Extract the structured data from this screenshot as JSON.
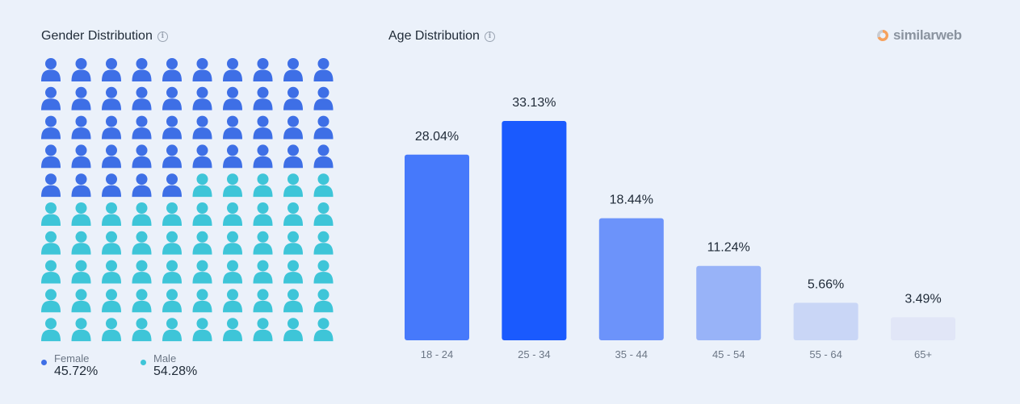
{
  "gender": {
    "title": "Gender Distribution",
    "female": {
      "label": "Female",
      "value": "45.72%",
      "pct": 45.72,
      "color": "#3e6fe6"
    },
    "male": {
      "label": "Male",
      "value": "54.28%",
      "pct": 54.28,
      "color": "#3ec5d8"
    },
    "icon_count": 100
  },
  "age": {
    "title": "Age Distribution"
  },
  "brand": {
    "name": "similarweb"
  },
  "chart_data": [
    {
      "type": "icon-array",
      "title": "Gender Distribution",
      "categories": [
        "Female",
        "Male"
      ],
      "values": [
        45.72,
        54.28
      ],
      "unit": "%"
    },
    {
      "type": "bar",
      "title": "Age Distribution",
      "categories": [
        "18 - 24",
        "25 - 34",
        "35 - 44",
        "45 - 54",
        "55 - 64",
        "65+"
      ],
      "values": [
        28.04,
        33.13,
        18.44,
        11.24,
        5.66,
        3.49
      ],
      "labels": [
        "28.04%",
        "33.13%",
        "18.44%",
        "11.24%",
        "5.66%",
        "3.49%"
      ],
      "colors": [
        "#4679fb",
        "#1a5afe",
        "#6c93fa",
        "#98b3f8",
        "#c9d6f6",
        "#e1e6f7"
      ],
      "ylim": [
        0,
        33.13
      ],
      "grid": false
    }
  ]
}
